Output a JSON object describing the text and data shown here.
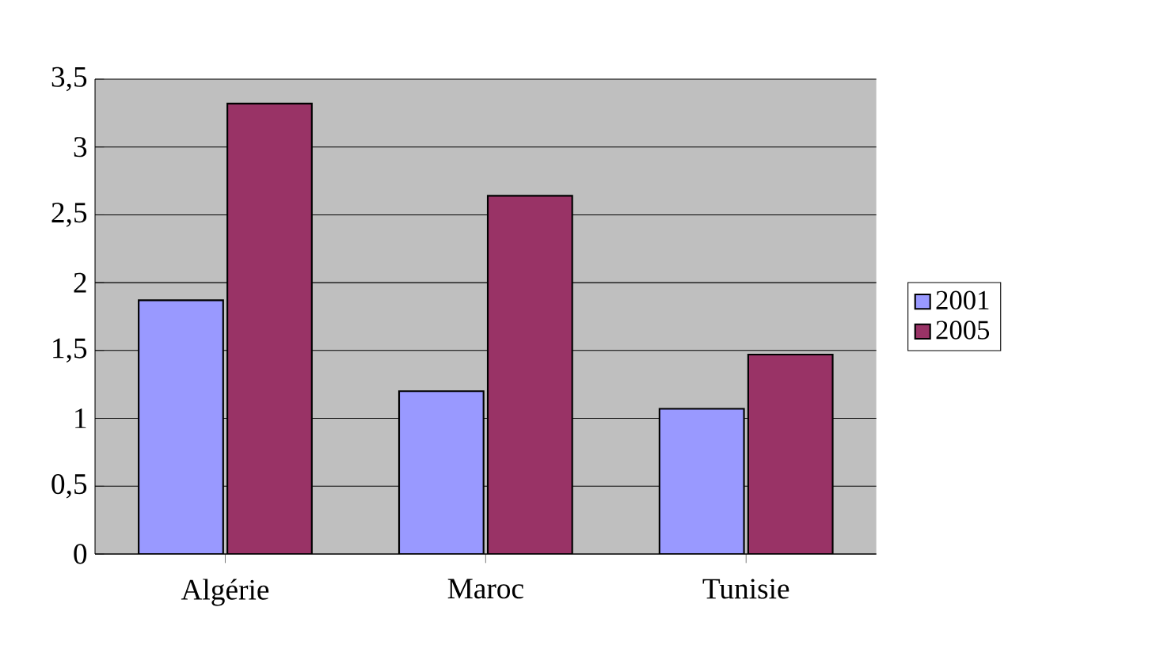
{
  "chart_data": {
    "type": "bar",
    "categories": [
      "Algérie",
      "Maroc",
      "Tunisie"
    ],
    "series": [
      {
        "name": "2001",
        "color": "#9999ff",
        "values": [
          1.87,
          1.2,
          1.07
        ]
      },
      {
        "name": "2005",
        "color": "#993366",
        "values": [
          3.32,
          2.64,
          1.47
        ]
      }
    ],
    "ylim": [
      0,
      3.5
    ],
    "yticks": [
      0,
      {
        "value": 0.5,
        "label": "0,5"
      },
      1,
      {
        "value": 1.5,
        "label": "1,5"
      },
      2,
      {
        "value": 2.5,
        "label": "2,5"
      },
      3,
      {
        "value": 3.5,
        "label": "3,5"
      }
    ],
    "grid": "y",
    "legend": "right"
  }
}
